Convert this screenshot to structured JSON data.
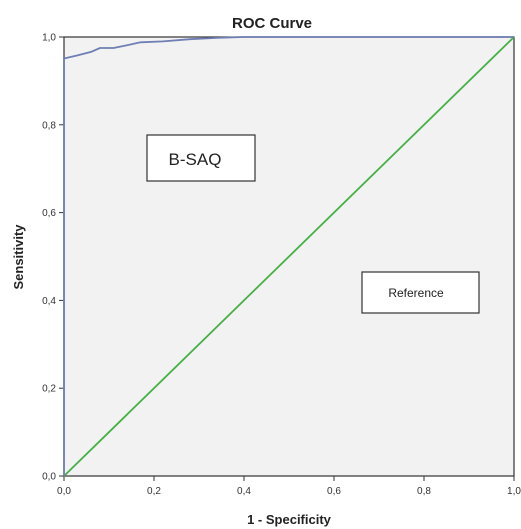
{
  "chart_data": {
    "type": "line",
    "title": "ROC Curve",
    "xlabel": "1 - Specificity",
    "ylabel": "Sensitivity",
    "xlim": [
      0,
      1
    ],
    "ylim": [
      0,
      1
    ],
    "x_ticks": [
      "0,0",
      "0,2",
      "0,4",
      "0,6",
      "0,8",
      "1,0"
    ],
    "y_ticks": [
      "0,0",
      "0,2",
      "0,4",
      "0,6",
      "0,8",
      "1,0"
    ],
    "grid": false,
    "series": [
      {
        "name": "B-SAQ",
        "color": "#6f7fb3",
        "x": [
          0.0,
          0.0,
          0.03,
          0.06,
          0.08,
          0.11,
          0.14,
          0.17,
          0.22,
          0.28,
          0.34,
          0.4,
          0.6,
          0.8,
          1.0
        ],
        "y": [
          0.0,
          0.951,
          0.958,
          0.966,
          0.975,
          0.975,
          0.981,
          0.988,
          0.99,
          0.995,
          0.998,
          1.0,
          1.0,
          1.0,
          1.0
        ]
      },
      {
        "name": "Reference",
        "color": "#45b045",
        "x": [
          0.0,
          1.0
        ],
        "y": [
          0.0,
          1.0
        ]
      }
    ],
    "annotations": [
      {
        "text": "B-SAQ"
      },
      {
        "text": "Reference"
      }
    ]
  }
}
